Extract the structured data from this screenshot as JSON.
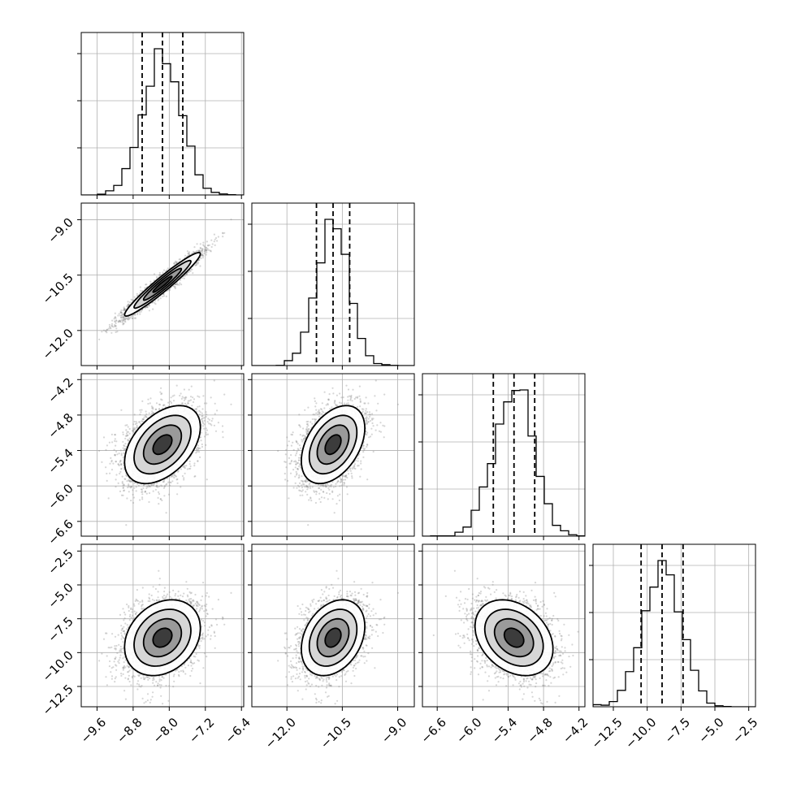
{
  "chart_data": {
    "type": "corner",
    "style": {
      "grid": true,
      "quantiles": [
        0.16,
        0.5,
        0.84
      ],
      "hist_color": "#000000",
      "scatter_color": "#8a8a8a",
      "contour_color": "#000000",
      "density_cmap": [
        "#ffffff",
        "#000000"
      ]
    },
    "parameters": [
      {
        "id": "p0",
        "mean": -8.15,
        "sd": 0.42,
        "range": [
          -9.95,
          -6.35
        ],
        "ticks": [
          -9.6,
          -8.8,
          -8.0,
          -7.2,
          -6.4
        ],
        "tick_labels": [
          "−9.6",
          "−8.8",
          "−8.0",
          "−7.2",
          "−6.4"
        ],
        "quantile_values": [
          -8.6,
          -8.15,
          -7.7
        ]
      },
      {
        "id": "p1",
        "mean": -10.75,
        "sd": 0.43,
        "range": [
          -12.95,
          -8.55
        ],
        "ticks": [
          -12.0,
          -10.5,
          -9.0
        ],
        "tick_labels": [
          "−12.0",
          "−10.5",
          "−9.0"
        ],
        "quantile_values": [
          -11.2,
          -10.75,
          -10.3
        ]
      },
      {
        "id": "p2",
        "mean": -5.3,
        "sd": 0.33,
        "range": [
          -6.85,
          -4.1
        ],
        "ticks": [
          -6.6,
          -6.0,
          -5.4,
          -4.8,
          -4.2
        ],
        "tick_labels": [
          "−6.6",
          "−6.0",
          "−5.4",
          "−4.8",
          "−4.2"
        ],
        "quantile_values": [
          -5.65,
          -5.3,
          -4.95
        ]
      },
      {
        "id": "p3",
        "mean": -8.9,
        "sd": 1.4,
        "range": [
          -14.0,
          -2.0
        ],
        "ticks": [
          -12.5,
          -10.0,
          -7.5,
          -5.0,
          -2.5
        ],
        "tick_labels": [
          "−12.5",
          "−10.0",
          "−7.5",
          "−5.0",
          "−2.5"
        ],
        "quantile_values": [
          -10.45,
          -8.9,
          -7.35
        ]
      }
    ],
    "correlations": [
      {
        "pair": [
          "p0",
          "p1"
        ],
        "rho": 0.96
      },
      {
        "pair": [
          "p0",
          "p2"
        ],
        "rho": 0.45
      },
      {
        "pair": [
          "p1",
          "p2"
        ],
        "rho": 0.42
      },
      {
        "pair": [
          "p0",
          "p3"
        ],
        "rho": 0.25
      },
      {
        "pair": [
          "p1",
          "p3"
        ],
        "rho": 0.3
      },
      {
        "pair": [
          "p2",
          "p3"
        ],
        "rho": -0.3
      }
    ]
  }
}
